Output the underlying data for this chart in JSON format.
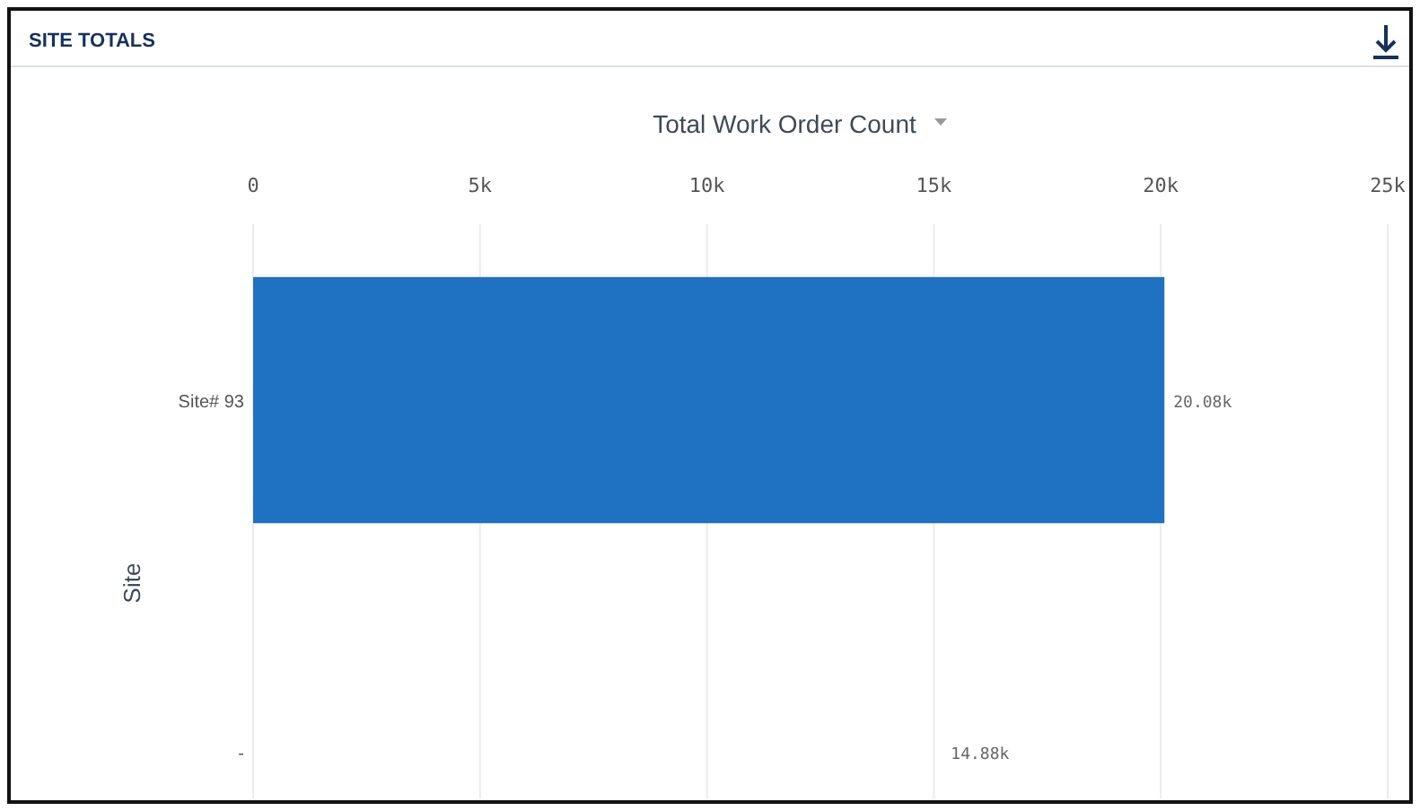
{
  "chart_data": {
    "type": "bar",
    "orientation": "horizontal",
    "title": "SITE TOTALS",
    "xlabel": "Total Work Order Count",
    "ylabel": "Site",
    "categories": [
      "Site# 93",
      "-"
    ],
    "values": [
      20080,
      null
    ],
    "value_labels": [
      "20.08k",
      null
    ],
    "color": "#1f71c1",
    "xlim": [
      0,
      25000
    ],
    "xticks": [
      0,
      {
        "value": 5000,
        "label": "5k"
      },
      {
        "value": 10000,
        "label": "10k"
      },
      {
        "value": 15000,
        "label": "15k"
      },
      {
        "value": 20000,
        "label": "20k"
      },
      {
        "value": 25000,
        "label": "25k"
      }
    ],
    "grid": "x",
    "annotations": [
      "14.88k"
    ]
  }
}
